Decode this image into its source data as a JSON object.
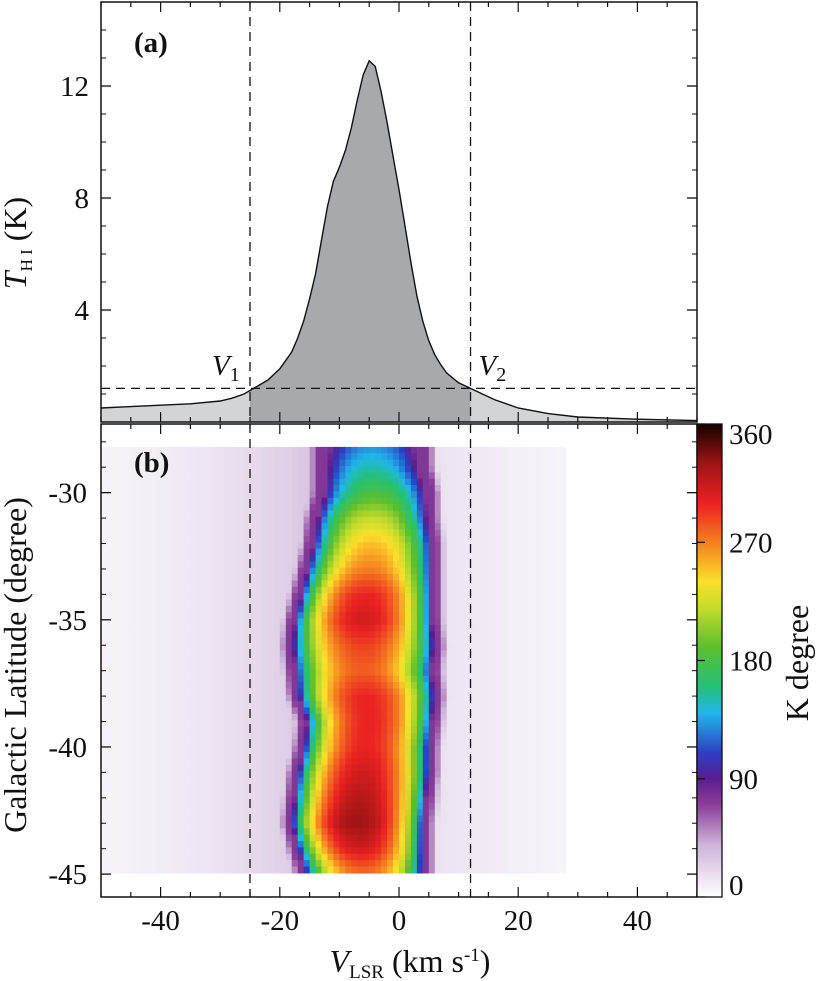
{
  "chart_data": [
    {
      "panel": "(a)",
      "type": "area",
      "ylabel": "T",
      "ylabel_sub": "H I",
      "ylabel_unit": " (K)",
      "xlim": [
        -50,
        50
      ],
      "ylim": [
        0,
        15
      ],
      "yticks": [
        4,
        8,
        12
      ],
      "series": [
        {
          "x": [
            -50,
            -45,
            -40,
            -35,
            -30,
            -28,
            -26,
            -24,
            -22,
            -20,
            -18,
            -17,
            -16,
            -15,
            -14,
            -13,
            -12,
            -11,
            -10,
            -9,
            -8,
            -7,
            -6,
            -5,
            -4,
            -3,
            -2,
            -1,
            0,
            1,
            2,
            3,
            4,
            5,
            6,
            7,
            8,
            10,
            12,
            14,
            16,
            20,
            25,
            30,
            40,
            50
          ],
          "y": [
            0.5,
            0.55,
            0.6,
            0.65,
            0.75,
            0.85,
            1.0,
            1.25,
            1.5,
            1.9,
            2.5,
            3.0,
            3.6,
            4.4,
            5.3,
            6.5,
            7.7,
            8.6,
            9.1,
            9.7,
            10.5,
            11.5,
            12.4,
            12.9,
            12.7,
            11.8,
            10.7,
            9.5,
            8.3,
            7.0,
            5.7,
            4.5,
            3.6,
            2.9,
            2.4,
            2.05,
            1.75,
            1.4,
            1.2,
            1.0,
            0.8,
            0.5,
            0.3,
            0.18,
            0.1,
            0.05
          ]
        }
      ],
      "hline": 1.2,
      "vlines": [
        -25,
        12
      ],
      "annotations": [
        {
          "label": "V",
          "sub": "1",
          "x": -25
        },
        {
          "label": "V",
          "sub": "2",
          "x": 12
        }
      ]
    },
    {
      "panel": "(b)",
      "type": "heatmap",
      "xlabel": "V",
      "xlabel_sub": "LSR",
      "xlabel_unit": " (km s",
      "xlabel_sup": "-1",
      "ylabel": "Galactic Latitude (degree)",
      "xlim": [
        -50,
        50
      ],
      "ylim": [
        -45.9,
        -27.3
      ],
      "xticks": [
        -40,
        -20,
        0,
        20,
        40
      ],
      "yticks": [
        -30,
        -35,
        -40,
        -45
      ],
      "data_extent": {
        "b_min": -44.8,
        "b_max": -28.2
      },
      "vlines": [
        -25,
        12
      ],
      "colorbar": {
        "label": "K degree",
        "min": 0,
        "max": 360,
        "ticks": [
          0,
          90,
          180,
          270,
          360
        ]
      },
      "ridge": {
        "b": [
          -28.2,
          -29,
          -30,
          -31,
          -32,
          -33,
          -34,
          -35,
          -36,
          -37,
          -38,
          -39,
          -40,
          -41,
          -42,
          -43,
          -44,
          -44.8
        ],
        "center": [
          -4.5,
          -4.5,
          -4,
          -4.5,
          -4.5,
          -5,
          -5.5,
          -6,
          -6,
          -6,
          -5.5,
          -5,
          -5.5,
          -6,
          -6.5,
          -7,
          -6.5,
          -6
        ],
        "halfwidth": [
          9,
          9,
          9.5,
          10,
          10.5,
          11,
          11.5,
          12,
          12.5,
          12,
          12,
          11,
          11,
          11.5,
          11.5,
          11.5,
          11,
          10.5
        ],
        "peak": [
          130,
          150,
          180,
          220,
          250,
          270,
          300,
          310,
          290,
          280,
          300,
          300,
          300,
          310,
          320,
          330,
          310,
          280
        ]
      }
    }
  ]
}
